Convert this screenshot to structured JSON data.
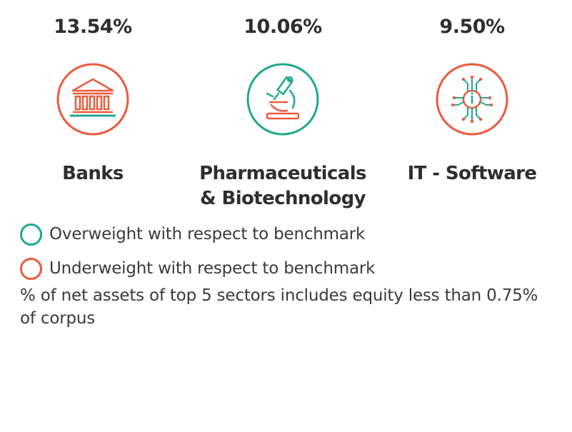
{
  "colors": {
    "overweight": "#20a88e",
    "underweight": "#ec5a3c",
    "text": "#2e2e2e"
  },
  "sectors": [
    {
      "percent": "13.54%",
      "name_line1": "Banks",
      "name_line2": "",
      "icon": "bank-icon",
      "weight": "underweight"
    },
    {
      "percent": "10.06%",
      "name_line1": "Pharmaceuticals",
      "name_line2": "& Biotechnology",
      "icon": "microscope-icon",
      "weight": "overweight"
    },
    {
      "percent": "9.50%",
      "name_line1": "IT - Software",
      "name_line2": "",
      "icon": "circuit-chip-icon",
      "weight": "underweight"
    }
  ],
  "legend": {
    "overweight_label": "Overweight with respect to benchmark",
    "underweight_label": "Underweight with respect to benchmark"
  },
  "footnote": "% of net assets of top 5 sectors includes equity less than 0.75% of corpus"
}
